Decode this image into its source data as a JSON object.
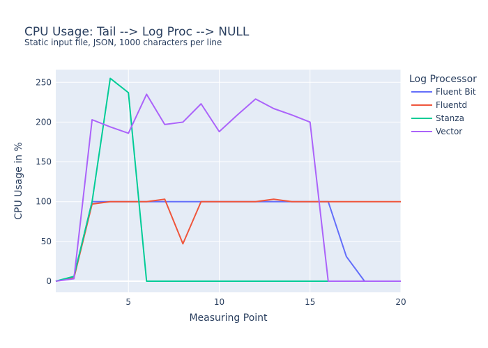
{
  "chart_data": {
    "type": "line",
    "title": "CPU Usage: Tail --> Log Proc --> NULL",
    "subtitle": "Static input file, JSON, 1000 characters per line",
    "xlabel": "Measuring Point",
    "ylabel": "CPU Usage in %",
    "xlim": [
      1,
      20
    ],
    "ylim": [
      -14,
      266
    ],
    "x_ticks": [
      5,
      10,
      15,
      20
    ],
    "y_ticks": [
      0,
      50,
      100,
      150,
      200,
      250
    ],
    "grid": true,
    "legend_title": "Log Processor",
    "legend_position": "right",
    "x": [
      1,
      2,
      3,
      4,
      5,
      6,
      7,
      8,
      9,
      10,
      11,
      12,
      13,
      14,
      15,
      16,
      17,
      18,
      19,
      20
    ],
    "series": [
      {
        "name": "Fluent Bit",
        "color": "#636efa",
        "values": [
          0,
          5,
          100,
          100,
          100,
          100,
          100,
          100,
          100,
          100,
          100,
          100,
          100,
          100,
          100,
          100,
          31,
          0,
          0,
          0
        ]
      },
      {
        "name": "Fluentd",
        "color": "#ef553b",
        "values": [
          0,
          4,
          97,
          100,
          100,
          100,
          103,
          47,
          100,
          100,
          100,
          100,
          103,
          100,
          100,
          100,
          100,
          100,
          100,
          100
        ]
      },
      {
        "name": "Stanza",
        "color": "#00cc96",
        "values": [
          0,
          6,
          100,
          255,
          237,
          0,
          0,
          0,
          0,
          0,
          0,
          0,
          0,
          0,
          0,
          0,
          0,
          0,
          0,
          0
        ]
      },
      {
        "name": "Vector",
        "color": "#ab63fa",
        "values": [
          0,
          3,
          203,
          194,
          186,
          235,
          197,
          200,
          223,
          188,
          209,
          229,
          217,
          209,
          200,
          0,
          0,
          0,
          0,
          0
        ]
      }
    ]
  },
  "colors": {
    "plot_bg": "#e5ecf6",
    "grid": "#ffffff",
    "text": "#2a3f5f"
  }
}
